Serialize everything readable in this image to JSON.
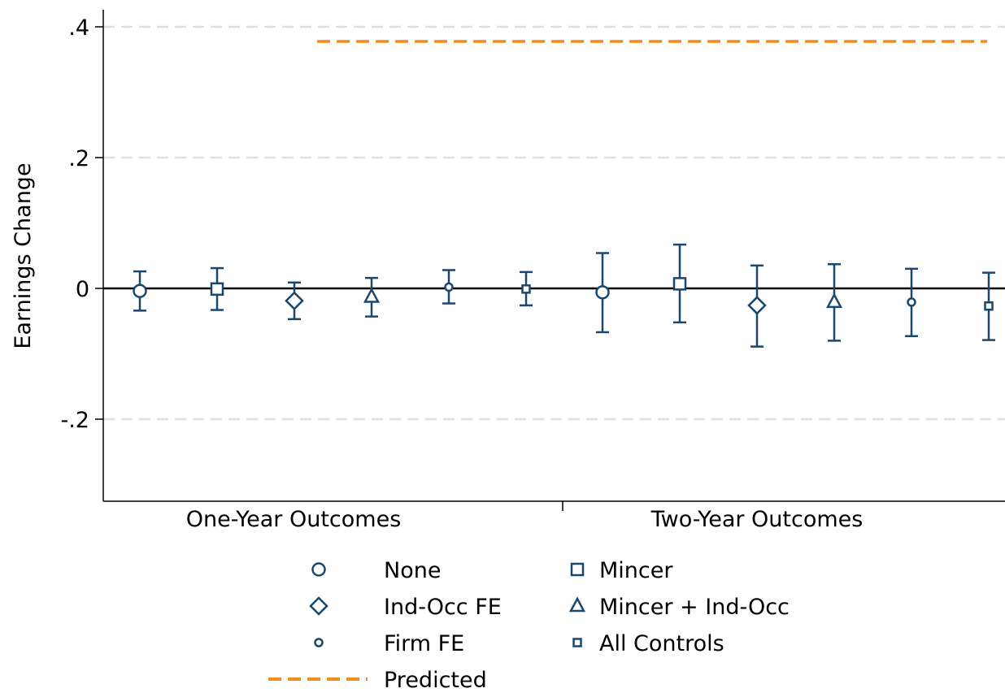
{
  "chart_data": {
    "type": "scatter",
    "title": "",
    "xlabel": "",
    "ylabel": "Earnings Change",
    "ylim": [
      -0.32,
      0.42
    ],
    "yticks": [
      {
        "value": 0.4,
        "label": ".4"
      },
      {
        "value": 0.2,
        "label": ".2"
      },
      {
        "value": 0,
        "label": "0"
      },
      {
        "value": -0.2,
        "label": "-.2"
      }
    ],
    "grid": true,
    "categories": [
      "One-Year Outcomes",
      "Two-Year Outcomes"
    ],
    "series": [
      {
        "name": "None",
        "marker": "circle",
        "points": [
          {
            "group": 0,
            "y": -0.004,
            "lo": -0.034,
            "hi": 0.026
          },
          {
            "group": 1,
            "y": -0.006,
            "lo": -0.067,
            "hi": 0.054
          }
        ]
      },
      {
        "name": "Mincer",
        "marker": "square",
        "points": [
          {
            "group": 0,
            "y": -0.001,
            "lo": -0.033,
            "hi": 0.031
          },
          {
            "group": 1,
            "y": 0.007,
            "lo": -0.052,
            "hi": 0.067
          }
        ]
      },
      {
        "name": "Ind-Occ FE",
        "marker": "diamond",
        "points": [
          {
            "group": 0,
            "y": -0.019,
            "lo": -0.047,
            "hi": 0.009
          },
          {
            "group": 1,
            "y": -0.026,
            "lo": -0.089,
            "hi": 0.035
          }
        ]
      },
      {
        "name": "Mincer + Ind-Occ",
        "marker": "triangle",
        "points": [
          {
            "group": 0,
            "y": -0.013,
            "lo": -0.043,
            "hi": 0.016
          },
          {
            "group": 1,
            "y": -0.021,
            "lo": -0.08,
            "hi": 0.037
          }
        ]
      },
      {
        "name": "Firm FE",
        "marker": "smallcircle",
        "points": [
          {
            "group": 0,
            "y": 0.002,
            "lo": -0.023,
            "hi": 0.028
          },
          {
            "group": 1,
            "y": -0.021,
            "lo": -0.073,
            "hi": 0.03
          }
        ]
      },
      {
        "name": "All Controls",
        "marker": "smallsquare",
        "points": [
          {
            "group": 0,
            "y": -0.001,
            "lo": -0.026,
            "hi": 0.025
          },
          {
            "group": 1,
            "y": -0.027,
            "lo": -0.079,
            "hi": 0.024
          }
        ]
      }
    ],
    "reference_lines": [
      {
        "name": "Predicted",
        "y": 0.39,
        "style": "dashed"
      }
    ],
    "legend": {
      "position": "bottom",
      "columns": 2
    },
    "colors": {
      "markers": "#1a476f",
      "predicted": "#f28c1c",
      "gridline": "#e0e0e0",
      "zero_line": "#000000"
    }
  }
}
